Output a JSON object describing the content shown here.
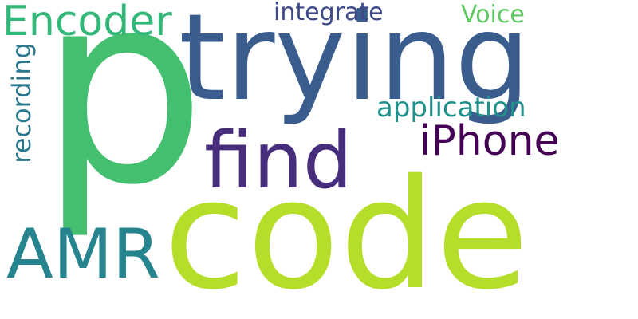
{
  "words": [
    {
      "text": "p",
      "color": "#44bf70"
    },
    {
      "text": "trying",
      "color": "#3b5d8d"
    },
    {
      "text": "code",
      "color": "#b5de2b"
    },
    {
      "text": "find",
      "color": "#472d7b"
    },
    {
      "text": "AMR",
      "color": "#25848e"
    },
    {
      "text": "iPhone",
      "color": "#440154"
    },
    {
      "text": "Encoder",
      "color": "#35b779"
    },
    {
      "text": "application",
      "color": "#21918c"
    },
    {
      "text": "integrate",
      "color": "#3e4a89"
    },
    {
      "text": "Voice",
      "color": "#5ec962"
    },
    {
      "text": "recording",
      "color": "#2a788e"
    }
  ]
}
